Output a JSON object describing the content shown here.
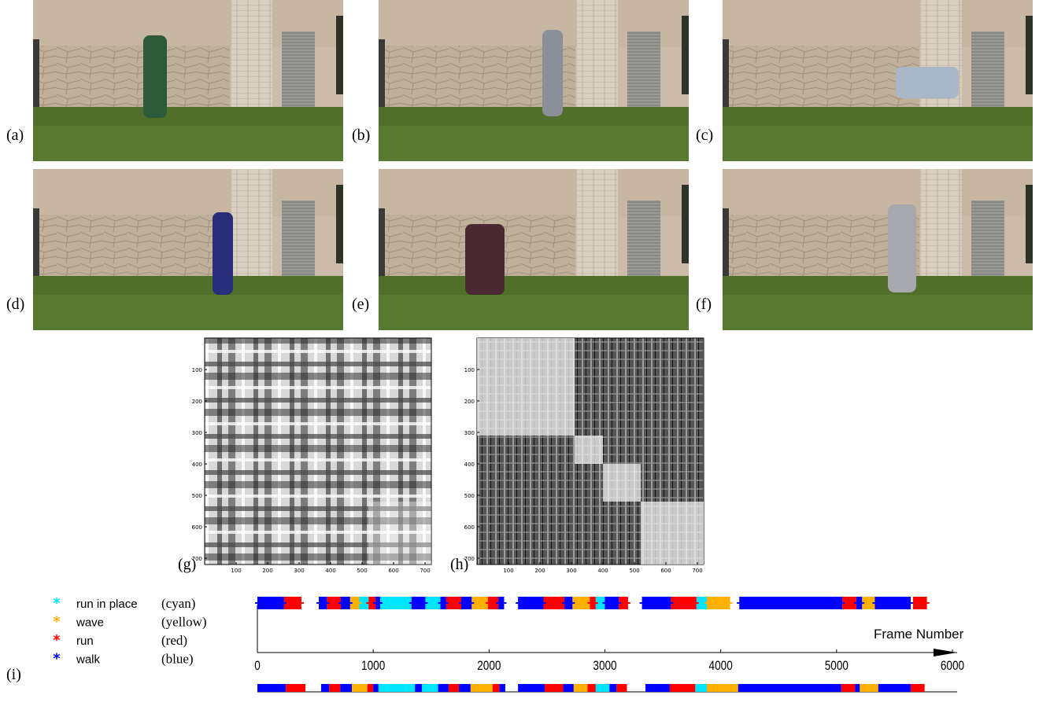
{
  "photos": [
    "(a)",
    "(b)",
    "(c)",
    "(d)",
    "(e)",
    "(f)"
  ],
  "matrices": [
    {
      "label": "(g)",
      "lim": [
        0,
        720
      ],
      "ticks": [
        100,
        200,
        300,
        400,
        500,
        600,
        700
      ]
    },
    {
      "label": "(h)",
      "lim": [
        0,
        720
      ],
      "ticks": [
        100,
        200,
        300,
        400,
        500,
        600,
        700
      ]
    }
  ],
  "timeline": {
    "label": "(i)",
    "xlabel": "Frame Number",
    "xlim": [
      0,
      6000
    ],
    "xticks": [
      0,
      1000,
      2000,
      3000,
      4000,
      5000,
      6000
    ],
    "series": [
      {
        "name": "run in place",
        "color_name": "(cyan)",
        "color": "#00e5ff",
        "estimated": [
          [
            880,
            960
          ],
          [
            1060,
            1330
          ],
          [
            1450,
            1580
          ],
          [
            2920,
            3000
          ],
          [
            3790,
            3880
          ]
        ],
        "truth": [
          [
            1045,
            1360
          ],
          [
            1420,
            1560
          ],
          [
            2920,
            3040
          ],
          [
            3780,
            3880
          ]
        ]
      },
      {
        "name": "wave",
        "color_name": "(yellow)",
        "color": "#ffb000",
        "estimated": [
          [
            800,
            880
          ],
          [
            1850,
            1990
          ],
          [
            2720,
            2870
          ],
          [
            3880,
            4080
          ],
          [
            5220,
            5330
          ]
        ],
        "truth": [
          [
            815,
            950
          ],
          [
            1840,
            2030
          ],
          [
            2730,
            2850
          ],
          [
            3880,
            4150
          ],
          [
            5200,
            5360
          ]
        ]
      },
      {
        "name": "run",
        "color_name": "(red)",
        "color": "#ff0000",
        "estimated": [
          [
            230,
            380
          ],
          [
            600,
            720
          ],
          [
            960,
            1020
          ],
          [
            1630,
            1760
          ],
          [
            1990,
            2080
          ],
          [
            2470,
            2650
          ],
          [
            2870,
            2920
          ],
          [
            3120,
            3200
          ],
          [
            3570,
            3790
          ],
          [
            5050,
            5170
          ],
          [
            5660,
            5780
          ]
        ],
        "truth": [
          [
            245,
            415
          ],
          [
            620,
            715
          ],
          [
            950,
            1000
          ],
          [
            1650,
            1740
          ],
          [
            2030,
            2090
          ],
          [
            2480,
            2640
          ],
          [
            2850,
            2920
          ],
          [
            3100,
            3190
          ],
          [
            3560,
            3780
          ],
          [
            5040,
            5160
          ],
          [
            5640,
            5760
          ]
        ]
      },
      {
        "name": "walk",
        "color_name": "(blue)",
        "color": "#0000ff",
        "estimated": [
          [
            0,
            230
          ],
          [
            530,
            600
          ],
          [
            720,
            800
          ],
          [
            1020,
            1060
          ],
          [
            1330,
            1450
          ],
          [
            1580,
            1630
          ],
          [
            1760,
            1850
          ],
          [
            2080,
            2130
          ],
          [
            2250,
            2470
          ],
          [
            2650,
            2720
          ],
          [
            3000,
            3120
          ],
          [
            3320,
            3570
          ],
          [
            4160,
            5050
          ],
          [
            5170,
            5220
          ],
          [
            5330,
            5640
          ]
        ],
        "truth": [
          [
            0,
            245
          ],
          [
            550,
            620
          ],
          [
            715,
            815
          ],
          [
            1000,
            1045
          ],
          [
            1360,
            1420
          ],
          [
            1560,
            1650
          ],
          [
            1740,
            1840
          ],
          [
            2090,
            2140
          ],
          [
            2250,
            2480
          ],
          [
            2640,
            2730
          ],
          [
            3040,
            3100
          ],
          [
            3350,
            3560
          ],
          [
            4150,
            5040
          ],
          [
            5160,
            5200
          ],
          [
            5360,
            5640
          ]
        ]
      }
    ]
  }
}
